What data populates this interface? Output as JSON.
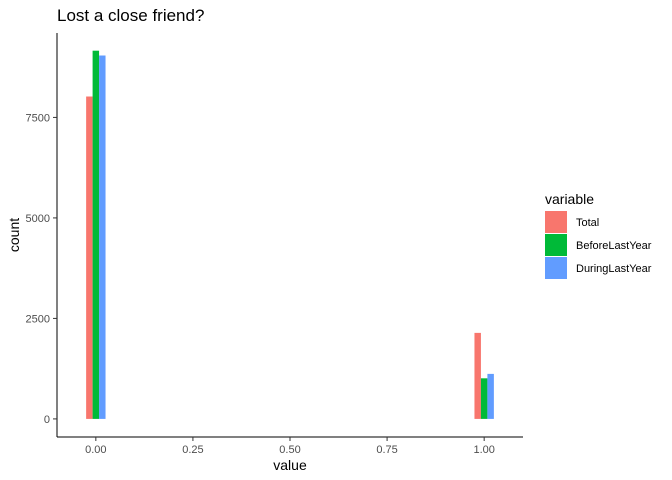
{
  "chart_data": {
    "type": "bar",
    "title": "Lost a close friend?",
    "xlabel": "value",
    "ylabel": "count",
    "x_ticks": [
      "0.00",
      "0.25",
      "0.50",
      "0.75",
      "1.00"
    ],
    "x_tick_values": [
      0,
      0.25,
      0.5,
      0.75,
      1.0
    ],
    "y_ticks": [
      "0",
      "2500",
      "5000",
      "7500"
    ],
    "y_tick_values": [
      0,
      2500,
      5000,
      7500
    ],
    "xlim": [
      -0.1,
      1.1
    ],
    "ylim": [
      -450,
      9600
    ],
    "x": [
      0,
      1
    ],
    "series": [
      {
        "name": "Total",
        "values": [
          8020,
          2140
        ],
        "color": "#F8766D"
      },
      {
        "name": "BeforeLastYear",
        "values": [
          9160,
          1010
        ],
        "color": "#00BA38"
      },
      {
        "name": "DuringLastYear",
        "values": [
          9040,
          1120
        ],
        "color": "#619CFF"
      }
    ],
    "legend": {
      "title": "variable",
      "position": "right"
    },
    "grid": false
  }
}
